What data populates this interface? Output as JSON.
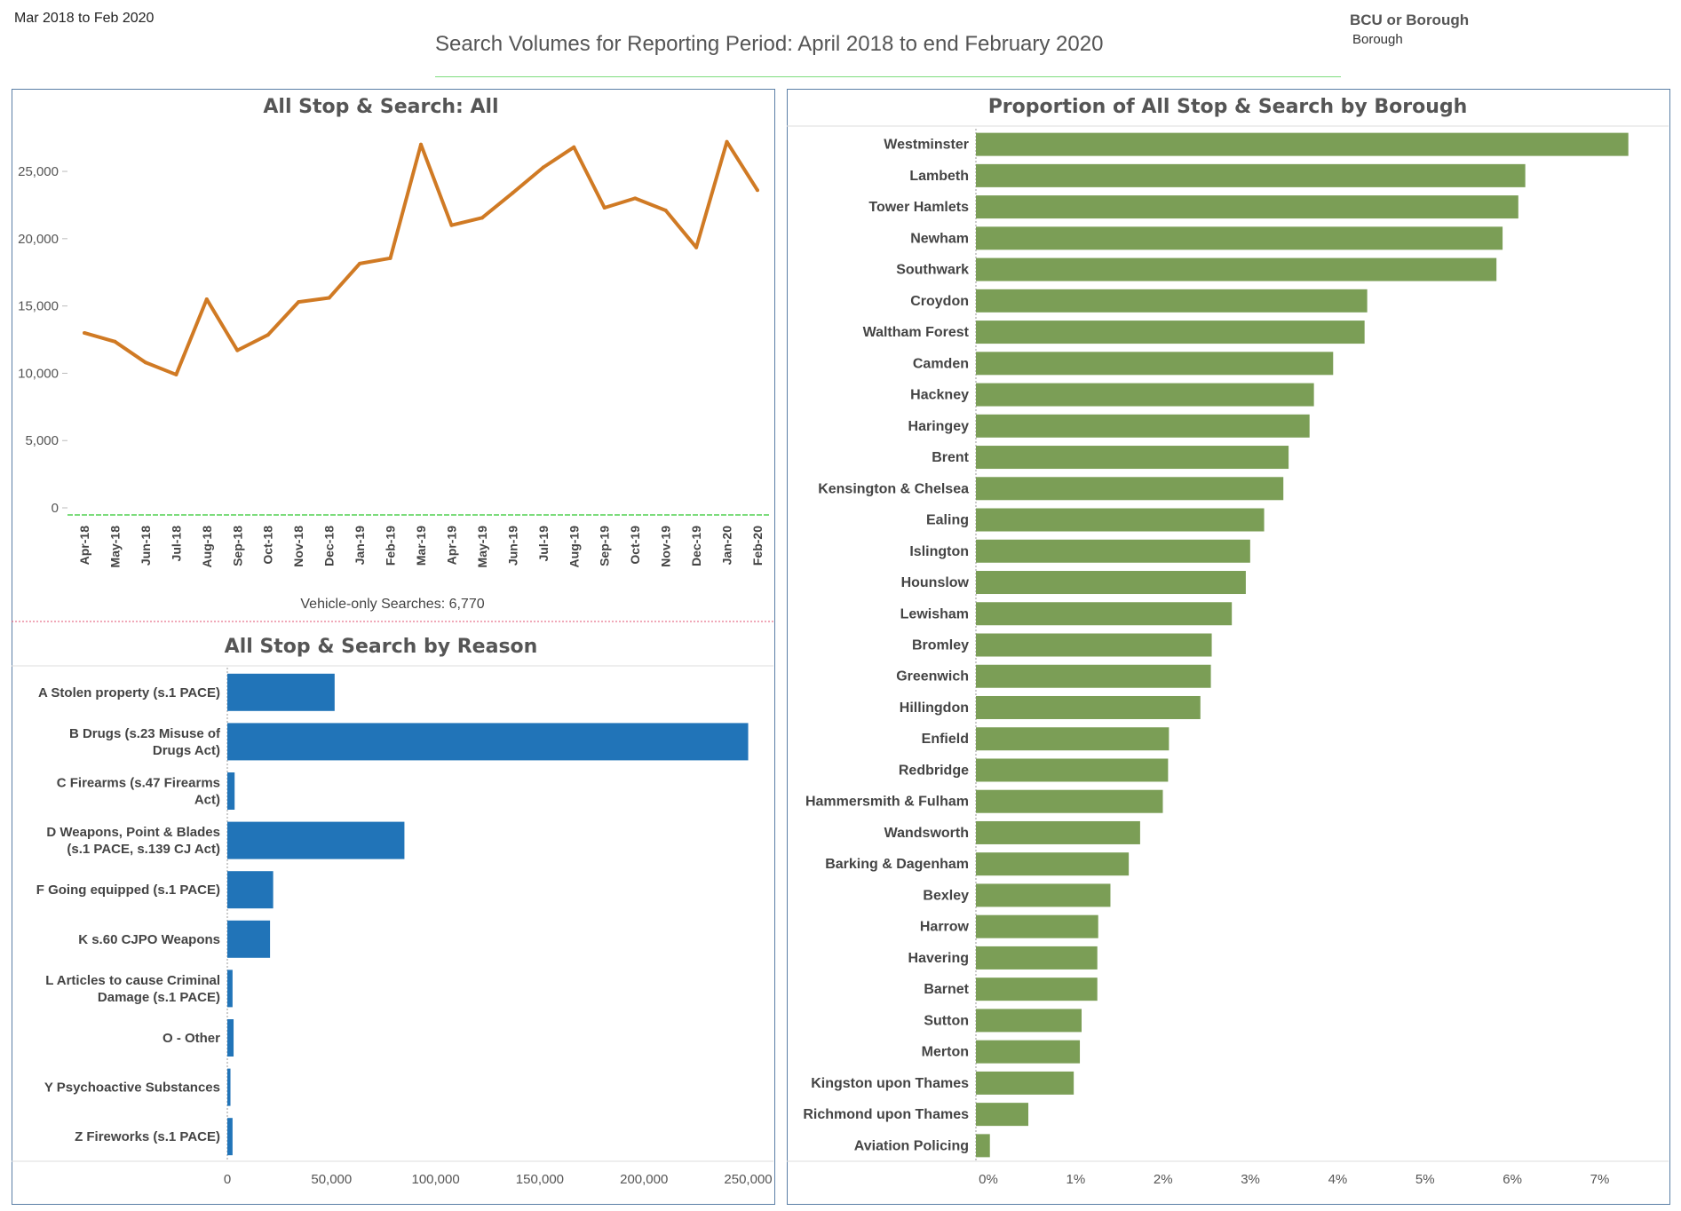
{
  "header": {
    "period_label": "Mar 2018 to Feb 2020",
    "title": "Search Volumes for Reporting Period: April 2018 to end February 2020",
    "filter_title": "BCU or Borough",
    "filter_value": "Borough"
  },
  "vehicle_note": "Vehicle-only Searches: 6,770",
  "colors": {
    "line": "#d07a24",
    "reason_bar": "#2174b8",
    "borough_bar": "#7b9e56",
    "panel_border": "#5b7fa6"
  },
  "chart_data": [
    {
      "type": "line",
      "title": "All Stop & Search: All",
      "xlabel": "",
      "ylabel": "",
      "categories": [
        "Apr-18",
        "May-18",
        "Jun-18",
        "Jul-18",
        "Aug-18",
        "Sep-18",
        "Oct-18",
        "Nov-18",
        "Dec-18",
        "Jan-19",
        "Feb-19",
        "Mar-19",
        "Apr-19",
        "May-19",
        "Jun-19",
        "Jul-19",
        "Aug-19",
        "Sep-19",
        "Oct-19",
        "Nov-19",
        "Dec-19",
        "Jan-20",
        "Feb-20"
      ],
      "series": [
        {
          "values": [
            13000,
            12350,
            10800,
            9900,
            15500,
            11700,
            12850,
            15300,
            15600,
            18150,
            18550,
            27000,
            21000,
            21550,
            23400,
            25300,
            26800,
            22300,
            23000,
            22100,
            19350,
            27200,
            23600
          ]
        }
      ],
      "yticks": [
        0,
        5000,
        10000,
        15000,
        20000,
        25000
      ],
      "ytick_labels": [
        "0",
        "5,000",
        "10,000",
        "15,000",
        "20,000",
        "25,000"
      ],
      "ylim": [
        0,
        28500
      ],
      "grid": false
    },
    {
      "type": "bar",
      "orientation": "horizontal",
      "title": "All Stop & Search by Reason",
      "categories": [
        [
          "A Stolen property (s.1 PACE)"
        ],
        [
          "B Drugs (s.23 Misuse of",
          "Drugs Act)"
        ],
        [
          "C Firearms (s.47 Firearms",
          "Act)"
        ],
        [
          "D Weapons, Point & Blades",
          "(s.1 PACE, s.139 CJ Act)"
        ],
        [
          "F Going equipped (s.1 PACE)"
        ],
        [
          "K s.60 CJPO Weapons"
        ],
        [
          "L Articles to cause Criminal",
          "Damage (s.1 PACE)"
        ],
        [
          "O - Other"
        ],
        [
          "Y Psychoactive Substances"
        ],
        [
          "Z Fireworks (s.1 PACE)"
        ]
      ],
      "values": [
        51500,
        250000,
        3500,
        85000,
        22000,
        20500,
        2500,
        3000,
        1500,
        2500
      ],
      "xticks": [
        0,
        50000,
        100000,
        150000,
        200000,
        250000
      ],
      "xtick_labels": [
        "0",
        "50,000",
        "100,000",
        "150,000",
        "200,000",
        "250,000"
      ],
      "xlim": [
        0,
        260000
      ]
    },
    {
      "type": "bar",
      "orientation": "horizontal",
      "title": "Proportion of All Stop & Search by Borough",
      "categories": [
        "Westminster",
        "Lambeth",
        "Tower Hamlets",
        "Newham",
        "Southwark",
        "Croydon",
        "Waltham Forest",
        "Camden",
        "Hackney",
        "Haringey",
        "Brent",
        "Kensington & Chelsea",
        "Ealing",
        "Islington",
        "Hounslow",
        "Lewisham",
        "Bromley",
        "Greenwich",
        "Hillingdon",
        "Enfield",
        "Redbridge",
        "Hammersmith & Fulham",
        "Wandsworth",
        "Barking & Dagenham",
        "Bexley",
        "Harrow",
        "Havering",
        "Barnet",
        "Sutton",
        "Merton",
        "Kingston upon Thames",
        "Richmond upon Thames",
        "Aviation Policing"
      ],
      "values": [
        7.47,
        6.29,
        6.21,
        6.03,
        5.96,
        4.48,
        4.45,
        4.09,
        3.87,
        3.82,
        3.58,
        3.52,
        3.3,
        3.14,
        3.09,
        2.93,
        2.7,
        2.69,
        2.57,
        2.21,
        2.2,
        2.14,
        1.88,
        1.75,
        1.54,
        1.4,
        1.39,
        1.39,
        1.21,
        1.19,
        1.12,
        0.6,
        0.16
      ],
      "xticks": [
        0,
        1,
        2,
        3,
        4,
        5,
        6,
        7
      ],
      "xtick_labels": [
        "0%",
        "1%",
        "2%",
        "3%",
        "4%",
        "5%",
        "6%",
        "7%"
      ],
      "xlim": [
        0,
        7.9
      ]
    }
  ]
}
